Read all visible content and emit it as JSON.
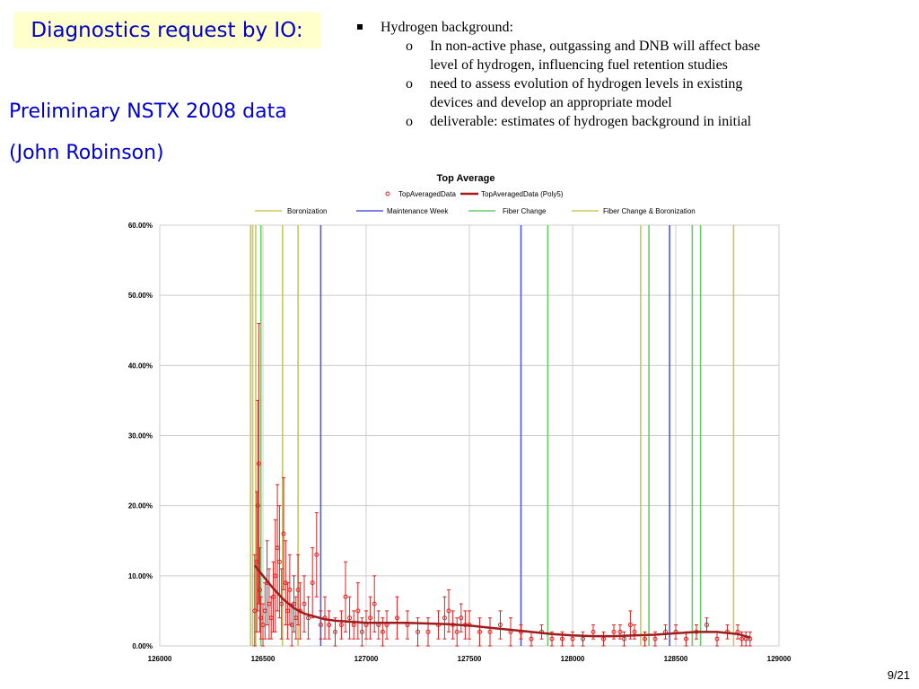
{
  "slide": {
    "title": "Diagnostics request by IO:",
    "subtitle_1": "Preliminary NSTX 2008 data",
    "subtitle_2": "(John Robinson)",
    "page_number": "9/21"
  },
  "bullets": {
    "main": "Hydrogen background:",
    "subs": [
      [
        "In non-active phase, outgassing and DNB will affect base",
        "level of hydrogen, influencing fuel retention studies"
      ],
      [
        "need to assess evolution of hydrogen levels in existing",
        "devices and develop an appropriate model"
      ],
      [
        "deliverable: estimates of hydrogen background in initial",
        ""
      ]
    ]
  },
  "colors": {
    "title_text": "#0000cc",
    "title_bg": "#ffffcc",
    "data_points": "#dd2222",
    "fit_line": "#9e1c1c",
    "boronization": "#c8c85a",
    "maintenance": "#5555dd",
    "fiber_change": "#66cc66",
    "fiber_boronization": "#c8c85a"
  },
  "chart_data": {
    "type": "scatter",
    "title": "Top Average",
    "xlim": [
      126000,
      129000
    ],
    "ylim": [
      0,
      60
    ],
    "x_ticks": [
      126000,
      126500,
      127000,
      127500,
      128000,
      128500,
      129000
    ],
    "y_ticks": [
      "0.00%",
      "10.00%",
      "20.00%",
      "30.00%",
      "40.00%",
      "50.00%",
      "60.00%"
    ],
    "grid": true,
    "legend": {
      "row1": [
        "TopAveragedData",
        "TopAveragedData (Poly5)"
      ],
      "row2": [
        "Boronization",
        "Maintenance Week",
        "Fiber Change",
        "Fiber Change & Boronization"
      ]
    },
    "series": [
      {
        "name": "TopAveragedData",
        "x": [
          126460,
          126470,
          126475,
          126480,
          126485,
          126490,
          126500,
          126510,
          126520,
          126530,
          126540,
          126550,
          126560,
          126570,
          126580,
          126590,
          126600,
          126610,
          126620,
          126630,
          126640,
          126650,
          126660,
          126670,
          126680,
          126700,
          126720,
          126740,
          126760,
          126780,
          126800,
          126820,
          126850,
          126880,
          126900,
          126920,
          126940,
          126960,
          126980,
          127000,
          127020,
          127040,
          127060,
          127080,
          127100,
          127150,
          127200,
          127250,
          127300,
          127350,
          127380,
          127400,
          127420,
          127440,
          127460,
          127480,
          127500,
          127550,
          127600,
          127650,
          127700,
          127750,
          127800,
          127850,
          127900,
          127950,
          128000,
          128050,
          128100,
          128150,
          128200,
          128230,
          128250,
          128280,
          128300,
          128350,
          128400,
          128450,
          128500,
          128550,
          128600,
          128650,
          128700,
          128750,
          128800,
          128820,
          128840,
          128860
        ],
        "y": [
          5,
          12,
          20,
          26,
          8,
          4,
          3,
          5,
          9,
          6,
          4,
          7,
          10,
          14,
          12,
          6,
          16,
          9,
          5,
          8,
          3,
          6,
          4,
          8,
          5,
          6,
          4,
          9,
          13,
          3,
          4,
          3,
          2,
          3,
          7,
          4,
          3,
          5,
          2,
          3,
          4,
          6,
          3,
          2,
          3,
          4,
          3,
          2,
          2,
          3,
          4,
          5,
          3,
          2,
          4,
          3,
          3,
          2,
          2,
          3,
          2,
          2,
          1,
          2,
          1,
          1,
          1,
          1,
          2,
          1,
          2,
          2,
          1,
          3,
          2,
          1,
          1,
          2,
          2,
          1,
          2,
          3,
          1,
          2,
          2,
          1,
          1,
          1
        ],
        "err": [
          8,
          10,
          15,
          20,
          6,
          3,
          3,
          4,
          6,
          5,
          3,
          5,
          8,
          9,
          8,
          5,
          8,
          6,
          4,
          5,
          3,
          4,
          3,
          5,
          4,
          4,
          3,
          5,
          6,
          2,
          3,
          2,
          2,
          2,
          5,
          3,
          2,
          4,
          2,
          2,
          3,
          4,
          2,
          2,
          2,
          3,
          2,
          2,
          2,
          2,
          3,
          3,
          2,
          2,
          2,
          2,
          2,
          2,
          2,
          2,
          2,
          1,
          1,
          1,
          1,
          1,
          1,
          1,
          1,
          1,
          1,
          1,
          1,
          2,
          1,
          1,
          1,
          1,
          1,
          1,
          1,
          1,
          1,
          1,
          1,
          1,
          1,
          1
        ]
      },
      {
        "name": "TopAveragedData (Poly5)",
        "x": [
          126460,
          126500,
          126550,
          126600,
          126650,
          126700,
          126750,
          126800,
          126850,
          126900,
          126950,
          127000,
          127100,
          127200,
          127300,
          127400,
          127500,
          127600,
          127700,
          127800,
          127900,
          128000,
          128100,
          128200,
          128300,
          128400,
          128500,
          128600,
          128700,
          128800,
          128860
        ],
        "y": [
          11.5,
          10,
          8.2,
          6.6,
          5.4,
          4.6,
          4.2,
          3.8,
          3.6,
          3.5,
          3.4,
          3.3,
          3.3,
          3.3,
          3.2,
          3.1,
          2.9,
          2.6,
          2.3,
          2.0,
          1.7,
          1.5,
          1.4,
          1.4,
          1.5,
          1.6,
          1.8,
          2.0,
          2.0,
          1.7,
          1.2
        ]
      }
    ],
    "event_lines": {
      "boronization": [
        126465,
        126595,
        126670,
        128330
      ],
      "maintenance_week": [
        126780,
        127750,
        128470
      ],
      "fiber_change": [
        126490,
        127880,
        128370,
        128580,
        128620
      ],
      "fiber_change_boronization": [
        126440,
        126450,
        128780
      ]
    }
  }
}
